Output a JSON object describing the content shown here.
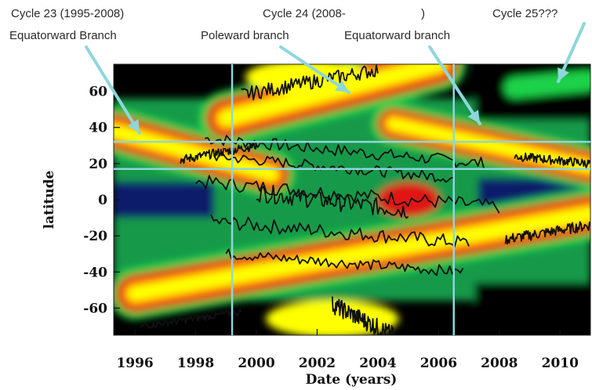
{
  "chart_data": {
    "type": "heatmap",
    "xlabel": "Date (years)",
    "ylabel": "latitude",
    "xlim": [
      1995.3,
      2011.0
    ],
    "ylim": [
      -75,
      75
    ],
    "x_ticks": [
      1996,
      1998,
      2000,
      2002,
      2004,
      2006,
      2008,
      2010
    ],
    "y_ticks": [
      60,
      40,
      20,
      0,
      -20,
      -40,
      -60
    ],
    "colormap": [
      "#000000",
      "#0b1f6b",
      "#179a48",
      "#1fd24a",
      "#e01616",
      "#ff7a00",
      "#ffff00"
    ],
    "reference_lines": {
      "vertical_years": [
        1999.2,
        2006.5
      ],
      "horizontal_latitudes": [
        32,
        17
      ],
      "color": "#8fd6dc"
    },
    "branches": [
      {
        "name": "Cycle 23 Equatorward Branch",
        "years": [
          1995.3,
          2000.5
        ],
        "latitudes": [
          38,
          14
        ]
      },
      {
        "name": "Cycle 24 Poleward branch",
        "years": [
          1999.0,
          2006.0
        ],
        "latitudes": [
          45,
          75
        ]
      },
      {
        "name": "Cycle 24 Equatorward branch",
        "years": [
          2004.5,
          2011.0
        ],
        "latitudes": [
          42,
          18
        ]
      },
      {
        "name": "Cycle 24 southern band",
        "years": [
          1996.0,
          2011.0
        ],
        "latitudes": [
          -52,
          -8
        ]
      },
      {
        "name": "Cycle 25 band",
        "years": [
          2008.5,
          2011.0
        ],
        "latitudes": [
          62,
          66
        ]
      }
    ]
  },
  "annotations": {
    "cycle23_line1": "Cycle 23 (1995-2008)",
    "cycle23_line2": "Equatorward Branch",
    "cycle24_line1": "Cycle 24 (2008-",
    "cycle24_paren": ")",
    "cycle24_poleward": "Poleward branch",
    "cycle24_equatorward": "Equatorward branch",
    "cycle25": "Cycle 25???"
  },
  "arrow_color": "#8fd6dc"
}
